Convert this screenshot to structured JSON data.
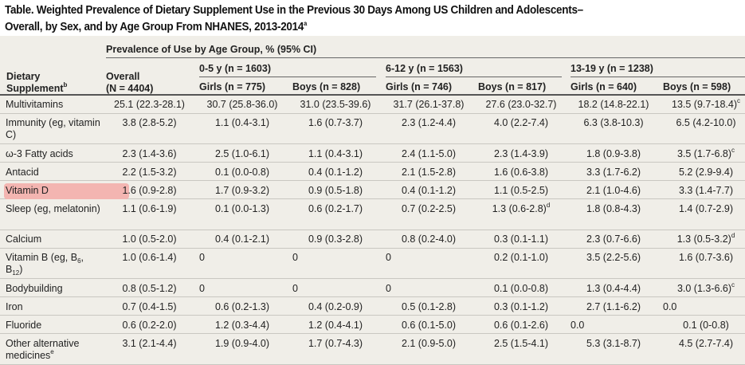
{
  "title": {
    "line1": "Table. Weighted Prevalence of Dietary Supplement Use in the Previous 30 Days Among US Children and Adolescents–",
    "line2": "Overall, by Sex, and by Age Group From NHANES, 2013-2014",
    "line2_sup": "a"
  },
  "header": {
    "supplement_line1": "Dietary",
    "supplement_line2": "Supplement",
    "supplement_sup": "b",
    "prevalence": "Prevalence of Use by Age Group, % (95% CI)",
    "overall_line1": "Overall",
    "overall_line2": "(N = 4404)",
    "age_groups": [
      "0-5 y (n = 1603)",
      "6-12 y (n = 1563)",
      "13-19 y (n = 1238)"
    ],
    "sex": [
      "Girls (n = 775)",
      "Boys (n = 828)",
      "Girls (n = 746)",
      "Boys (n = 817)",
      "Girls (n = 640)",
      "Boys (n = 598)"
    ]
  },
  "highlight_color": "#f3b5b1",
  "rows": [
    {
      "label": [
        "Multivitamins"
      ],
      "values": [
        [
          "25.1 (22.3-28.1)"
        ],
        [
          "30.7 (25.8-36.0)"
        ],
        [
          "31.0 (23.5-39.6)"
        ],
        [
          "31.7 (26.1-37.8)"
        ],
        [
          "27.6 (23.0-32.7)"
        ],
        [
          "18.2 (14.8-22.1)"
        ],
        [
          "13.5 (9.7-18.4)",
          "c"
        ]
      ]
    },
    {
      "label": [
        "Immunity (eg, vitamin C)"
      ],
      "values": [
        [
          "3.8 (2.8-5.2)"
        ],
        [
          "1.1 (0.4-3.1)"
        ],
        [
          "1.6 (0.7-3.7)"
        ],
        [
          "2.3 (1.2-4.4)"
        ],
        [
          "4.0 (2.2-7.4)"
        ],
        [
          "6.3 (3.8-10.3)"
        ],
        [
          "6.5 (4.2-10.0)"
        ]
      ]
    },
    {
      "label": [
        "ω-3 Fatty acids"
      ],
      "values": [
        [
          "2.3 (1.4-3.6)"
        ],
        [
          "2.5 (1.0-6.1)"
        ],
        [
          "1.1 (0.4-3.1)"
        ],
        [
          "2.4 (1.1-5.0)"
        ],
        [
          "2.3 (1.4-3.9)"
        ],
        [
          "1.8 (0.9-3.8)"
        ],
        [
          "3.5 (1.7-6.8)",
          "c"
        ]
      ]
    },
    {
      "label": [
        "Antacid"
      ],
      "values": [
        [
          "2.2 (1.5-3.2)"
        ],
        [
          "0.1 (0.0-0.8)"
        ],
        [
          "0.4 (0.1-1.2)"
        ],
        [
          "2.1 (1.5-2.8)"
        ],
        [
          "1.6 (0.6-3.8)"
        ],
        [
          "3.3 (1.7-6.2)"
        ],
        [
          "5.2 (2.9-9.4)"
        ]
      ]
    },
    {
      "label": [
        "Vitamin D"
      ],
      "highlighted": true,
      "values": [
        [
          "1.6 (0.9-2.8)"
        ],
        [
          "1.7 (0.9-3.2)"
        ],
        [
          "0.9 (0.5-1.8)"
        ],
        [
          "0.4 (0.1-1.2)"
        ],
        [
          "1.1 (0.5-2.5)"
        ],
        [
          "2.1 (1.0-4.6)"
        ],
        [
          "3.3 (1.4-7.7)"
        ]
      ]
    },
    {
      "label": [
        "Sleep (eg, melatonin)"
      ],
      "values": [
        [
          "1.1 (0.6-1.9)"
        ],
        [
          "0.1 (0.0-1.3)"
        ],
        [
          "0.6 (0.2-1.7)"
        ],
        [
          "0.7 (0.2-2.5)"
        ],
        [
          "1.3 (0.6-2.8)",
          "d"
        ],
        [
          "1.8 (0.8-4.3)"
        ],
        [
          "1.4 (0.7-2.9)"
        ]
      ]
    },
    {
      "label": [
        "Calcium"
      ],
      "values": [
        [
          "1.0 (0.5-2.0)"
        ],
        [
          "0.4 (0.1-2.1)"
        ],
        [
          "0.9 (0.3-2.8)"
        ],
        [
          "0.8 (0.2-4.0)"
        ],
        [
          "0.3 (0.1-1.1)"
        ],
        [
          "2.3 (0.7-6.6)"
        ],
        [
          "1.3 (0.5-3.2)",
          "d"
        ]
      ]
    },
    {
      "label": [
        "Vitamin B (eg, B",
        "6",
        ", B",
        "12",
        ")"
      ],
      "values": [
        [
          "1.0 (0.6-1.4)"
        ],
        [
          "0"
        ],
        [
          "0"
        ],
        [
          "0"
        ],
        [
          "0.2 (0.1-1.0)"
        ],
        [
          "3.5 (2.2-5.6)"
        ],
        [
          "1.6 (0.7-3.6)"
        ]
      ]
    },
    {
      "label": [
        "Bodybuilding"
      ],
      "values": [
        [
          "0.8 (0.5-1.2)"
        ],
        [
          "0"
        ],
        [
          "0"
        ],
        [
          "0"
        ],
        [
          "0.1 (0.0-0.8)"
        ],
        [
          "1.3 (0.4-4.4)"
        ],
        [
          "3.0 (1.3-6.6)",
          "c"
        ]
      ]
    },
    {
      "label": [
        "Iron"
      ],
      "values": [
        [
          "0.7 (0.4-1.5)"
        ],
        [
          "0.6 (0.2-1.3)"
        ],
        [
          "0.4 (0.2-0.9)"
        ],
        [
          "0.5 (0.1-2.8)"
        ],
        [
          "0.3 (0.1-1.2)"
        ],
        [
          "2.7 (1.1-6.2)"
        ],
        [
          "0.0"
        ]
      ]
    },
    {
      "label": [
        "Fluoride"
      ],
      "values": [
        [
          "0.6 (0.2-2.0)"
        ],
        [
          "1.2 (0.3-4.4)"
        ],
        [
          "1.2 (0.4-4.1)"
        ],
        [
          "0.6 (0.1-5.0)"
        ],
        [
          "0.6 (0.1-2.6)"
        ],
        [
          "0.0"
        ],
        [
          "0.1 (0-0.8)"
        ]
      ]
    },
    {
      "label": [
        "Other alternative medicines"
      ],
      "label_sup": "e",
      "values": [
        [
          "3.1 (2.1-4.4)"
        ],
        [
          "1.9 (0.9-4.0)"
        ],
        [
          "1.7 (0.7-4.3)"
        ],
        [
          "2.1 (0.9-5.0)"
        ],
        [
          "2.5 (1.5-4.1)"
        ],
        [
          "5.3 (3.1-8.7)"
        ],
        [
          "4.5 (2.7-7.4)"
        ]
      ]
    }
  ]
}
